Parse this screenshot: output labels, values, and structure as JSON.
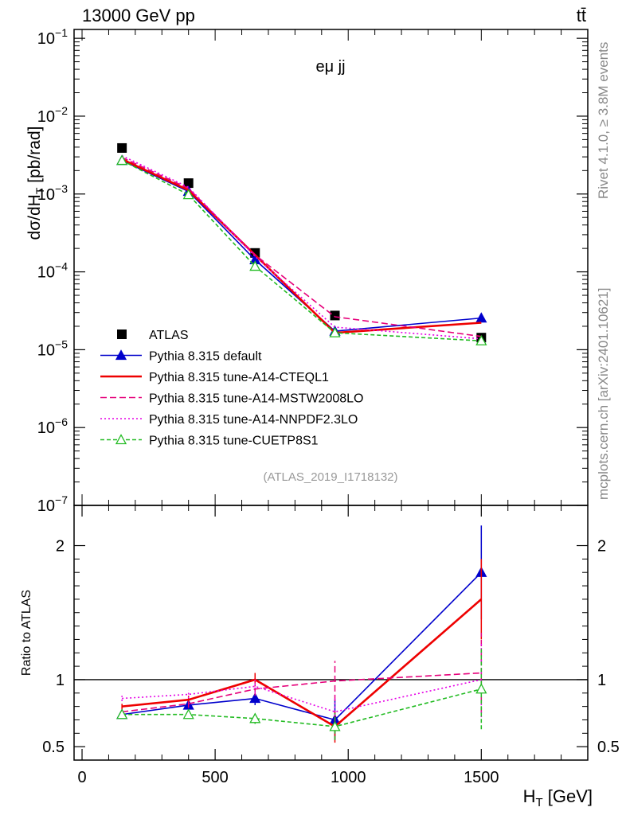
{
  "header": {
    "left": "13000 GeV pp",
    "right": "tt̄",
    "side_top": "Rivet 4.1.0, ≥ 3.8M events",
    "side_bottom": "mcplots.cern.ch [arXiv:2401.10621]",
    "analysis": "(ATLAS_2019_I1718132)",
    "process": "eμ jj"
  },
  "chart_data": [
    {
      "type": "line",
      "yscale": "log",
      "ylabel": "dσ/dH_T [pb/rad]",
      "ylim": [
        1e-07,
        0.13
      ],
      "xlim": [
        -30,
        1900
      ],
      "ytick_labels": [
        "10^-7",
        "10^-6",
        "10^-5",
        "10^-4",
        "10^-3",
        "10^-2",
        "10^-1"
      ],
      "x": [
        150,
        400,
        650,
        950,
        1500
      ],
      "series": [
        {
          "name": "ATLAS",
          "color": "#000000",
          "marker": "square",
          "values": [
            0.0039,
            0.00138,
            0.000175,
            2.75e-05,
            1.43e-05
          ]
        },
        {
          "name": "Pythia 8.315 default",
          "color": "#0000cc",
          "marker": "triangle",
          "dash": "",
          "values": [
            0.0027,
            0.00108,
            0.000143,
            1.73e-05,
            2.55e-05
          ]
        },
        {
          "name": "Pythia 8.315 tune-A14-CTEQL1",
          "color": "#ee0000",
          "marker": "none",
          "dash": "",
          "values": [
            0.0028,
            0.00112,
            0.000165,
            1.65e-05,
            2.22e-05
          ]
        },
        {
          "name": "Pythia 8.315 tune-A14-MSTW2008LO",
          "color": "#e6007a",
          "marker": "none",
          "dash": "8,4",
          "values": [
            0.00295,
            0.00118,
            0.000165,
            2.65e-05,
            1.48e-05
          ]
        },
        {
          "name": "Pythia 8.315 tune-A14-NNPDF2.3LO",
          "color": "#e600e6",
          "marker": "none",
          "dash": "2,3",
          "values": [
            0.0031,
            0.00122,
            0.000158,
            1.95e-05,
            1.38e-05
          ]
        },
        {
          "name": "Pythia 8.315 tune-CUETP8S1",
          "color": "#22bb22",
          "marker": "open-triangle",
          "dash": "5,3",
          "values": [
            0.0027,
            0.00098,
            0.000118,
            1.65e-05,
            1.3e-05
          ]
        }
      ]
    },
    {
      "type": "line",
      "ylabel": "Ratio to ATLAS",
      "xlabel": "H_T [GeV]",
      "ylim": [
        0.4,
        2.3
      ],
      "y_ticks": [
        0.5,
        1,
        2
      ],
      "y_tick_labels": [
        "0.5",
        "1",
        "2"
      ],
      "x_ticks": [
        0,
        500,
        1000,
        1500
      ],
      "x_tick_labels": [
        "0",
        "500",
        "1000",
        "1500"
      ],
      "reference": 1,
      "x": [
        150,
        400,
        650,
        950,
        1500
      ],
      "series": [
        {
          "name": "Pythia 8.315 default",
          "values": [
            0.74,
            0.81,
            0.86,
            0.7,
            1.8
          ],
          "err": [
            0.02,
            0.03,
            0.05,
            0.15,
            0.35
          ]
        },
        {
          "name": "Pythia 8.315 tune-A14-CTEQL1",
          "values": [
            0.8,
            0.85,
            1.0,
            0.65,
            1.6
          ],
          "err": [
            0.02,
            0.03,
            0.05,
            0.12,
            0.3
          ]
        },
        {
          "name": "Pythia 8.315 tune-A14-MSTW2008LO",
          "values": [
            0.76,
            0.82,
            0.93,
            0.99,
            1.05
          ],
          "err": [
            0.02,
            0.03,
            0.05,
            0.15,
            0.3
          ]
        },
        {
          "name": "Pythia 8.315 tune-A14-NNPDF2.3LO",
          "values": [
            0.86,
            0.89,
            0.95,
            0.76,
            1.0
          ],
          "err": [
            0.02,
            0.03,
            0.05,
            0.12,
            0.28
          ]
        },
        {
          "name": "Pythia 8.315 tune-CUETP8S1",
          "values": [
            0.74,
            0.74,
            0.71,
            0.65,
            0.93
          ],
          "err": [
            0.02,
            0.02,
            0.04,
            0.1,
            0.3
          ]
        }
      ]
    }
  ]
}
